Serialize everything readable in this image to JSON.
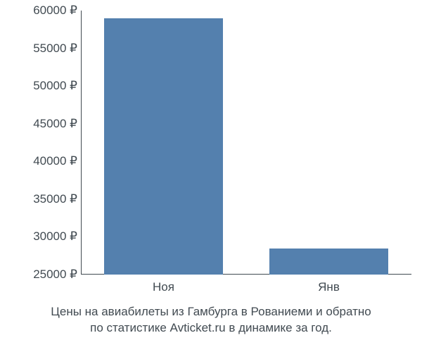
{
  "chart": {
    "type": "bar",
    "background_color": "#ffffff",
    "text_color": "#414a51",
    "bar_color": "#5480ae",
    "axis_color": "#414a51",
    "y_axis": {
      "min": 25000,
      "max": 60000,
      "step": 5000,
      "suffix": " ₽",
      "fontsize": 17
    },
    "x_axis": {
      "fontsize": 17
    },
    "bars": [
      {
        "label": "Ноя",
        "value": 59000
      },
      {
        "label": "Янв",
        "value": 28500
      }
    ],
    "caption_line1": "Цены на авиабилеты из Гамбурга в Рованиеми и обратно",
    "caption_line2": "по статистике Avticket.ru в динамике за год.",
    "caption_fontsize": 17
  }
}
